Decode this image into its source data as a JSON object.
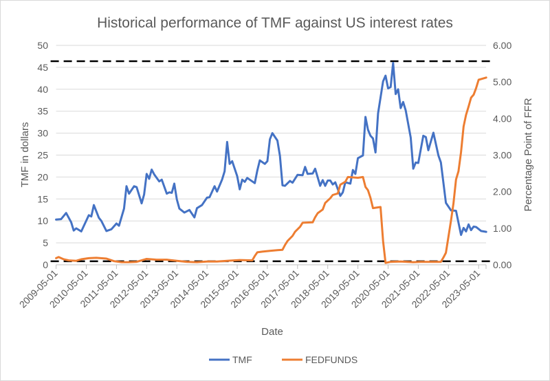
{
  "chart_data": {
    "type": "line",
    "title": "Historical performance of TMF against US interest rates",
    "xlabel": "Date",
    "ylabel": "TMF in dollars",
    "y2label": "Percentage Point of FFR",
    "ylim": [
      0,
      50
    ],
    "y2lim": [
      0,
      6
    ],
    "yticks": [
      "0",
      "5",
      "10",
      "15",
      "20",
      "25",
      "30",
      "35",
      "40",
      "45",
      "50"
    ],
    "y2ticks": [
      "0.00",
      "1.00",
      "2.00",
      "3.00",
      "4.00",
      "5.00",
      "6.00"
    ],
    "xticks": [
      "2009-05-01",
      "2010-05-01",
      "2011-05-01",
      "2012-05-01",
      "2013-05-01",
      "2014-05-01",
      "2015-05-01",
      "2016-05-01",
      "2017-05-01",
      "2018-05-01",
      "2019-05-01",
      "2020-05-01",
      "2021-05-01",
      "2022-05-01",
      "2023-05-01"
    ],
    "grid": true,
    "legend_position": "bottom",
    "reference_lines": [
      {
        "axis": "left",
        "value": 46.4,
        "style": "dashed",
        "color": "#000000"
      },
      {
        "axis": "left",
        "value": 0.8,
        "style": "dashed",
        "color": "#000000"
      }
    ],
    "series": [
      {
        "name": "TMF",
        "axis": "left",
        "color": "#4472C4",
        "x": [
          "2009-05",
          "2009-07",
          "2009-09",
          "2009-11",
          "2009-12",
          "2010-01",
          "2010-03",
          "2010-06",
          "2010-07",
          "2010-08",
          "2010-10",
          "2010-11",
          "2011-01",
          "2011-03",
          "2011-05",
          "2011-06",
          "2011-08",
          "2011-09",
          "2011-10",
          "2011-12",
          "2012-01",
          "2012-03",
          "2012-04",
          "2012-05",
          "2012-06",
          "2012-07",
          "2012-08",
          "2012-10",
          "2012-11",
          "2013-01",
          "2013-02",
          "2013-03",
          "2013-04",
          "2013-05",
          "2013-06",
          "2013-08",
          "2013-10",
          "2013-12",
          "2014-01",
          "2014-03",
          "2014-05",
          "2014-06",
          "2014-08",
          "2014-09",
          "2014-11",
          "2014-12",
          "2015-01",
          "2015-02",
          "2015-03",
          "2015-05",
          "2015-06",
          "2015-07",
          "2015-08",
          "2015-09",
          "2015-12",
          "2016-01",
          "2016-02",
          "2016-04",
          "2016-05",
          "2016-06",
          "2016-07",
          "2016-09",
          "2016-10",
          "2016-11",
          "2016-12",
          "2017-02",
          "2017-03",
          "2017-05",
          "2017-07",
          "2017-08",
          "2017-09",
          "2017-11",
          "2017-12",
          "2018-02",
          "2018-03",
          "2018-04",
          "2018-05",
          "2018-06",
          "2018-07",
          "2018-08",
          "2018-10",
          "2018-11",
          "2018-12",
          "2019-02",
          "2019-03",
          "2019-04",
          "2019-05",
          "2019-07",
          "2019-08",
          "2019-09",
          "2019-10",
          "2019-11",
          "2019-12",
          "2020-01",
          "2020-03",
          "2020-04",
          "2020-05",
          "2020-06",
          "2020-07",
          "2020-08",
          "2020-09",
          "2020-10",
          "2020-11",
          "2020-12",
          "2021-02",
          "2021-03",
          "2021-04",
          "2021-05",
          "2021-07",
          "2021-08",
          "2021-09",
          "2021-11",
          "2022-01",
          "2022-02",
          "2022-04",
          "2022-06",
          "2022-08",
          "2022-10",
          "2022-11",
          "2022-12",
          "2023-01",
          "2023-02",
          "2023-03",
          "2023-04",
          "2023-06",
          "2023-08"
        ],
        "values": [
          10.3,
          10.4,
          11.8,
          9.7,
          7.8,
          8.3,
          7.6,
          11.3,
          11.0,
          13.6,
          10.7,
          10.0,
          7.7,
          8.1,
          9.4,
          8.9,
          12.8,
          17.9,
          16.2,
          17.9,
          17.7,
          14.0,
          16.0,
          20.7,
          19.6,
          21.7,
          20.6,
          19.0,
          19.4,
          16.2,
          16.5,
          16.4,
          18.5,
          14.9,
          12.8,
          11.9,
          12.5,
          10.8,
          12.9,
          13.6,
          15.3,
          15.4,
          17.9,
          16.7,
          19.4,
          21.3,
          28.0,
          23.0,
          23.6,
          20.2,
          17.2,
          19.4,
          18.9,
          19.8,
          18.6,
          21.5,
          23.8,
          23.0,
          23.6,
          28.6,
          30.0,
          28.3,
          24.8,
          18.1,
          18.0,
          19.1,
          18.7,
          20.5,
          20.4,
          22.3,
          20.7,
          20.8,
          21.9,
          18.0,
          19.3,
          18.0,
          19.2,
          19.2,
          18.3,
          18.8,
          15.7,
          16.5,
          18.8,
          18.5,
          21.6,
          20.7,
          24.3,
          24.9,
          33.7,
          30.8,
          29.4,
          28.8,
          25.6,
          34.5,
          41.8,
          43.1,
          40.2,
          40.5,
          46.0,
          38.9,
          40.0,
          35.7,
          37.1,
          35.2,
          29.0,
          21.9,
          23.3,
          23.2,
          29.4,
          29.1,
          26.1,
          30.1,
          24.9,
          23.3,
          14.1,
          12.4,
          12.3,
          6.8,
          8.4,
          7.6,
          9.2,
          7.9,
          8.7,
          8.6,
          7.7,
          7.5
        ]
      },
      {
        "name": "FEDFUNDS",
        "axis": "right",
        "color": "#ED7D31",
        "x": [
          "2009-05",
          "2009-06",
          "2009-08",
          "2009-10",
          "2010-01",
          "2010-03",
          "2010-06",
          "2010-09",
          "2011-01",
          "2011-04",
          "2011-07",
          "2011-10",
          "2012-01",
          "2012-05",
          "2012-09",
          "2013-01",
          "2013-05",
          "2013-09",
          "2014-01",
          "2014-05",
          "2014-09",
          "2015-01",
          "2015-06",
          "2015-11",
          "2015-12",
          "2016-01",
          "2016-03",
          "2016-06",
          "2016-09",
          "2016-11",
          "2016-12",
          "2017-01",
          "2017-03",
          "2017-04",
          "2017-06",
          "2017-07",
          "2017-11",
          "2017-12",
          "2018-01",
          "2018-03",
          "2018-04",
          "2018-06",
          "2018-07",
          "2018-09",
          "2018-10",
          "2018-12",
          "2019-01",
          "2019-05",
          "2019-07",
          "2019-08",
          "2019-09",
          "2019-10",
          "2019-11",
          "2020-02",
          "2020-03",
          "2020-04",
          "2020-06",
          "2020-10",
          "2021-03",
          "2021-06",
          "2021-10",
          "2022-02",
          "2022-03",
          "2022-04",
          "2022-05",
          "2022-06",
          "2022-07",
          "2022-08",
          "2022-09",
          "2022-10",
          "2022-11",
          "2022-12",
          "2023-01",
          "2023-02",
          "2023-03",
          "2023-04",
          "2023-05",
          "2023-06",
          "2023-08"
        ],
        "values": [
          0.18,
          0.21,
          0.15,
          0.12,
          0.11,
          0.15,
          0.18,
          0.19,
          0.17,
          0.1,
          0.07,
          0.07,
          0.08,
          0.16,
          0.14,
          0.14,
          0.11,
          0.08,
          0.07,
          0.09,
          0.09,
          0.11,
          0.13,
          0.12,
          0.24,
          0.34,
          0.36,
          0.38,
          0.4,
          0.41,
          0.54,
          0.65,
          0.79,
          0.9,
          1.04,
          1.15,
          1.16,
          1.3,
          1.41,
          1.51,
          1.69,
          1.82,
          1.91,
          1.95,
          2.19,
          2.27,
          2.4,
          2.38,
          2.4,
          2.13,
          2.04,
          1.83,
          1.55,
          1.58,
          0.65,
          0.05,
          0.08,
          0.09,
          0.07,
          0.08,
          0.08,
          0.08,
          0.2,
          0.33,
          0.77,
          1.21,
          1.68,
          2.33,
          2.56,
          3.08,
          3.78,
          4.1,
          4.33,
          4.57,
          4.65,
          4.83,
          5.06,
          5.08,
          5.12
        ]
      }
    ]
  }
}
